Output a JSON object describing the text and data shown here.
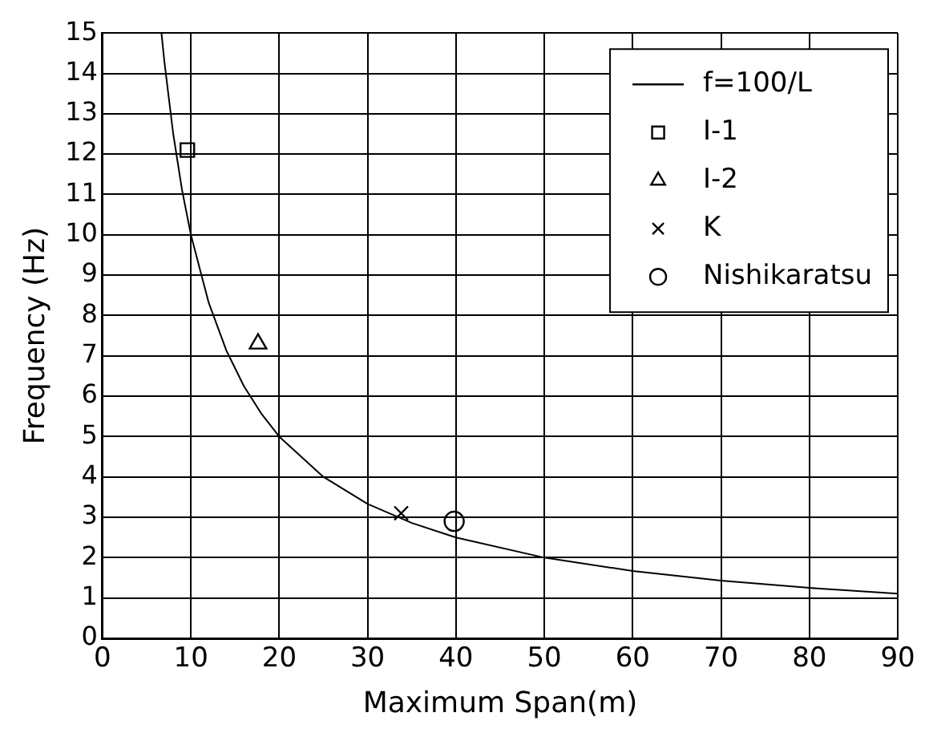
{
  "chart_data": {
    "type": "scatter",
    "xlabel": "Maximum Span(m)",
    "ylabel": "Frequency (Hz)",
    "xlim": [
      0,
      90
    ],
    "ylim": [
      0,
      15
    ],
    "xticks": [
      0,
      10,
      20,
      30,
      40,
      50,
      60,
      70,
      80,
      90
    ],
    "yticks": [
      0,
      1,
      2,
      3,
      4,
      5,
      6,
      7,
      8,
      9,
      10,
      11,
      12,
      13,
      14,
      15
    ],
    "grid": true,
    "legend": "top right",
    "series": [
      {
        "name": "f=100/L",
        "type": "line",
        "marker": "none",
        "color": "#000000",
        "x": [
          6.67,
          7,
          8,
          9,
          10,
          12,
          14,
          16,
          18,
          20,
          25,
          30,
          35,
          40,
          50,
          60,
          70,
          80,
          90
        ],
        "values": [
          15,
          14.29,
          12.5,
          11.11,
          10,
          8.33,
          7.14,
          6.25,
          5.56,
          5,
          4,
          3.33,
          2.86,
          2.5,
          2,
          1.67,
          1.43,
          1.25,
          1.11
        ]
      },
      {
        "name": "I-1",
        "marker": "square",
        "color": "#000000",
        "x": [
          9.6
        ],
        "values": [
          12.1
        ]
      },
      {
        "name": "I-2",
        "marker": "triangle",
        "color": "#000000",
        "x": [
          17.6
        ],
        "values": [
          7.3
        ]
      },
      {
        "name": "K",
        "marker": "cross",
        "color": "#000000",
        "x": [
          33.8
        ],
        "values": [
          3.1
        ]
      },
      {
        "name": "Nishikaratsu",
        "marker": "circle",
        "color": "#000000",
        "x": [
          39.8
        ],
        "values": [
          2.9
        ]
      }
    ]
  }
}
